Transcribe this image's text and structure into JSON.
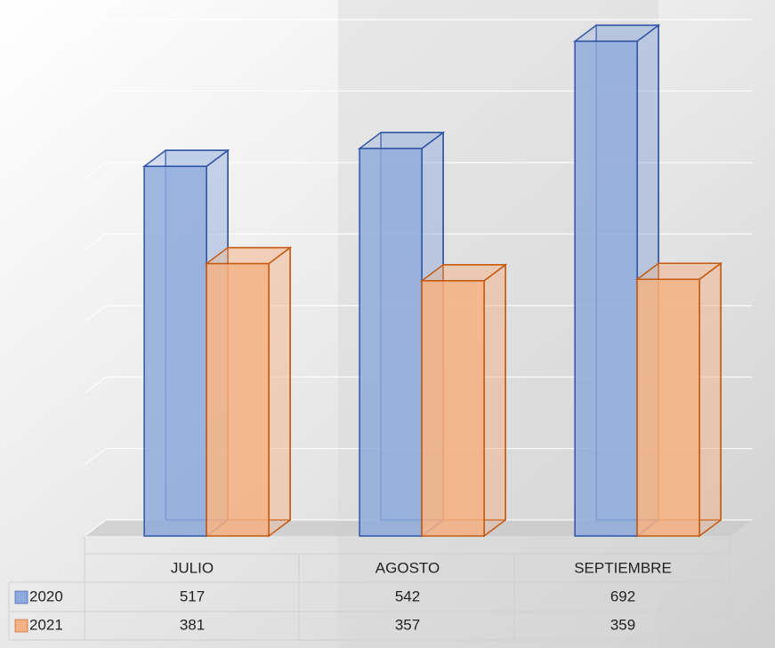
{
  "chart_data": {
    "type": "bar3d",
    "categories": [
      "JULIO",
      "AGOSTO",
      "SEPTIEMBRE"
    ],
    "series": [
      {
        "name": "2020",
        "color": "#8faadc",
        "edge": "#2f55a4",
        "values": [
          517,
          542,
          692
        ]
      },
      {
        "name": "2021",
        "color": "#f4b183",
        "edge": "#c55a11",
        "values": [
          381,
          357,
          359
        ]
      }
    ],
    "ylim": [
      0,
      700
    ],
    "yticks": [
      0,
      100,
      200,
      300,
      400,
      500,
      600,
      700
    ],
    "grid": true
  }
}
